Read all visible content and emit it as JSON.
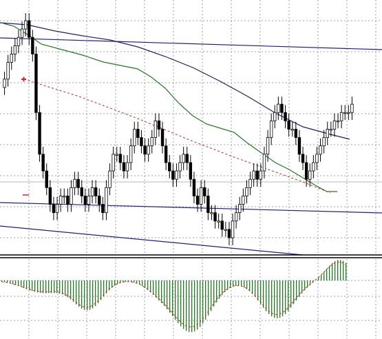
{
  "chart_data": [
    {
      "type": "candlestick",
      "panel": "price",
      "grid": true,
      "grid_color": "#9aa0a6",
      "colors": {
        "candle": "#000000",
        "ma_fast": "#1e7b1e",
        "ma_slow": "#1c1f6e",
        "trendline": "#1c1f8a",
        "dashed_trend": "#d62020",
        "horizontal_line": "#b8b8b8",
        "marker": "#d62020"
      },
      "close_series": [
        25,
        27,
        28,
        29,
        30,
        31,
        32,
        30,
        28,
        21,
        16,
        14,
        12,
        10,
        9,
        10,
        11,
        11,
        10,
        12,
        13,
        12,
        11,
        10,
        11,
        12,
        11,
        10,
        9,
        12,
        14,
        16,
        16,
        15,
        14,
        15,
        17,
        19,
        18,
        17,
        16,
        17,
        18,
        20,
        19,
        17,
        15,
        14,
        13,
        14,
        15,
        16,
        15,
        13,
        11,
        10,
        12,
        11,
        9,
        9,
        8,
        8,
        7,
        7,
        6,
        8,
        9,
        10,
        11,
        12,
        13,
        14,
        13,
        14,
        16,
        18,
        20,
        21,
        22,
        21,
        20,
        19,
        19,
        18,
        16,
        15,
        13,
        14,
        15,
        16,
        17,
        18,
        19,
        19,
        20,
        20,
        21,
        21,
        21,
        22
      ]
    },
    {
      "type": "histogram",
      "panel": "oscillator",
      "bar_color": "#1e7b1e",
      "signal_color": "#d62020",
      "zero_line": true
    }
  ]
}
